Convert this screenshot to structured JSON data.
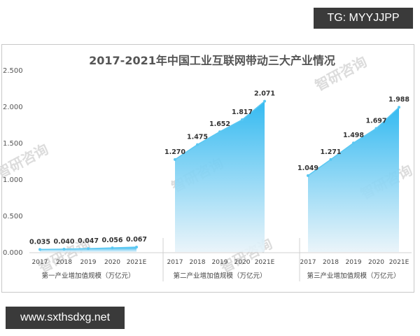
{
  "overlay": {
    "tg_label": "TG: MYYJJPP",
    "url_label": "www.sxthsdxg.net"
  },
  "watermark": "智研咨询",
  "chart_data": {
    "type": "area",
    "title": "2017-2021年中国工业互联网带动三大产业情况",
    "ylim": [
      0,
      2.5
    ],
    "yticks": [
      "0.000",
      "0.500",
      "1.000",
      "1.500",
      "2.000",
      "2.500"
    ],
    "grid": false,
    "legend": "none",
    "categories": [
      "2017",
      "2018",
      "2019",
      "2020",
      "2021E"
    ],
    "series": [
      {
        "name": "第一产业增加值规模（万亿元）",
        "values": [
          0.035,
          0.04,
          0.047,
          0.056,
          0.067
        ],
        "labels": [
          "0.035",
          "0.040",
          "0.047",
          "0.056",
          "0.067"
        ]
      },
      {
        "name": "第二产业增加值规模（万亿元）",
        "values": [
          1.27,
          1.475,
          1.652,
          1.817,
          2.071
        ],
        "labels": [
          "1.270",
          "1.475",
          "1.652",
          "1.817",
          "2.071"
        ]
      },
      {
        "name": "第三产业增加值规模（万亿元）",
        "values": [
          1.049,
          1.271,
          1.498,
          1.697,
          1.988
        ],
        "labels": [
          "1.049",
          "1.271",
          "1.498",
          "1.697",
          "1.988"
        ]
      }
    ],
    "colors": {
      "area_top": "#29b6f0",
      "area_bottom": "#e8f3f9",
      "line": "#5bc8f2",
      "divider": "#d0d0d0"
    }
  }
}
